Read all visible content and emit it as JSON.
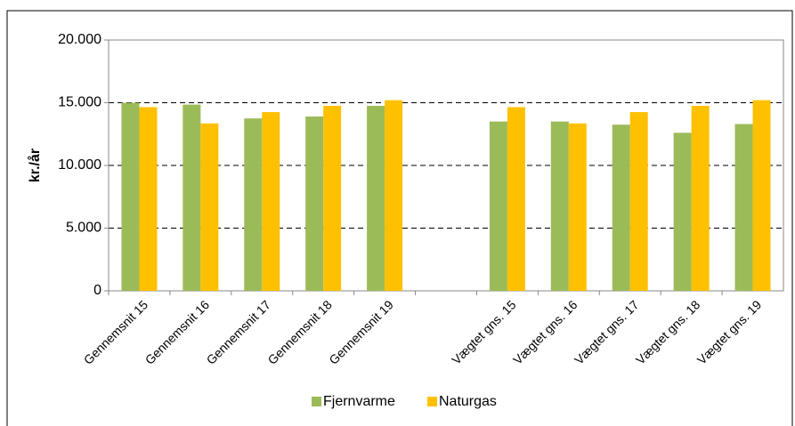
{
  "chart_data": {
    "type": "bar",
    "y_label": "kr./år",
    "categories": [
      "Gennemsnit 15",
      "Gennemsnit 16",
      "Gennemsnit 17",
      "Gennemsnit 18",
      "Gennemsnit 19",
      null,
      "Vægtet gns. 15",
      "Vægtet gns. 16",
      "Vægtet gns. 17",
      "Vægtet gns. 18",
      "Vægtet gns. 19"
    ],
    "series": [
      {
        "name": "Fjernvarme",
        "color": "#9bbb59",
        "values": [
          15000,
          14850,
          13750,
          13900,
          14750,
          null,
          13500,
          13500,
          13250,
          12600,
          13300
        ]
      },
      {
        "name": "Naturgas",
        "color": "#ffc000",
        "values": [
          14650,
          13350,
          14250,
          14750,
          15200,
          null,
          14650,
          13350,
          14250,
          14750,
          15200
        ]
      }
    ],
    "ylim": [
      0,
      20000
    ],
    "yticks": [
      0,
      {
        "value": 5000,
        "label": "5.000"
      },
      {
        "value": 10000,
        "label": "10.000"
      },
      {
        "value": 15000,
        "label": "15.000"
      },
      {
        "value": 20000,
        "label": "20.000"
      }
    ],
    "grid": true,
    "legend": "bottom"
  }
}
